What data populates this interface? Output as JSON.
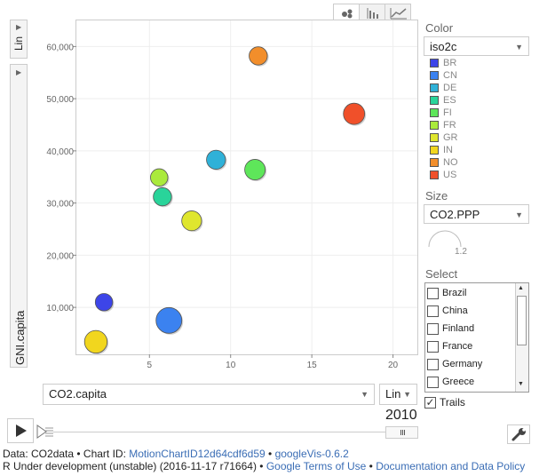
{
  "y_axis": {
    "scale": "Lin",
    "variable": "GNI.capita",
    "ticks": [
      "10,000",
      "20,000",
      "30,000",
      "40,000",
      "50,000",
      "60,000"
    ]
  },
  "x_axis": {
    "scale": "Lin",
    "variable": "CO2.capita",
    "ticks": [
      "5",
      "10",
      "15",
      "20"
    ]
  },
  "chart_tabs": [
    {
      "name": "bubble-chart",
      "active": true
    },
    {
      "name": "bar-chart",
      "active": false
    },
    {
      "name": "line-chart",
      "active": false
    }
  ],
  "color_panel": {
    "title": "Color",
    "selected": "iso2c",
    "legend": [
      {
        "code": "BR",
        "color": "#3d45e8"
      },
      {
        "code": "CN",
        "color": "#3b82f0"
      },
      {
        "code": "DE",
        "color": "#2fb1d8"
      },
      {
        "code": "ES",
        "color": "#29d49a"
      },
      {
        "code": "FI",
        "color": "#5ee65a"
      },
      {
        "code": "FR",
        "color": "#aaea3c"
      },
      {
        "code": "GR",
        "color": "#dfe62e"
      },
      {
        "code": "IN",
        "color": "#f1d61e"
      },
      {
        "code": "NO",
        "color": "#f28e2b"
      },
      {
        "code": "US",
        "color": "#f0502a"
      }
    ]
  },
  "size_panel": {
    "title": "Size",
    "selected": "CO2.PPP",
    "value": "1.2"
  },
  "select_panel": {
    "title": "Select",
    "items": [
      "Brazil",
      "China",
      "Finland",
      "France",
      "Germany",
      "Greece"
    ]
  },
  "trails": {
    "label": "Trails",
    "checked": true
  },
  "time": {
    "year": "2010"
  },
  "chart_data": {
    "type": "scatter",
    "xlabel": "CO2.capita",
    "ylabel": "GNI.capita",
    "xlim": [
      0.5,
      21.5
    ],
    "ylim": [
      1000,
      65000
    ],
    "points": [
      {
        "code": "BR",
        "x": 2.2,
        "y": 11000,
        "size": 1.0,
        "color": "#3d45e8"
      },
      {
        "code": "CN",
        "x": 6.2,
        "y": 7500,
        "size": 2.2,
        "color": "#3b82f0"
      },
      {
        "code": "DE",
        "x": 9.1,
        "y": 38300,
        "size": 1.2,
        "color": "#2fb1d8"
      },
      {
        "code": "ES",
        "x": 5.8,
        "y": 31200,
        "size": 1.1,
        "color": "#29d49a"
      },
      {
        "code": "FI",
        "x": 11.5,
        "y": 36400,
        "size": 1.4,
        "color": "#5ee65a"
      },
      {
        "code": "FR",
        "x": 5.6,
        "y": 34900,
        "size": 1.0,
        "color": "#aaea3c"
      },
      {
        "code": "GR",
        "x": 7.6,
        "y": 26600,
        "size": 1.3,
        "color": "#dfe62e"
      },
      {
        "code": "IN",
        "x": 1.7,
        "y": 3400,
        "size": 1.7,
        "color": "#f1d61e"
      },
      {
        "code": "NO",
        "x": 11.7,
        "y": 58200,
        "size": 1.1,
        "color": "#f28e2b"
      },
      {
        "code": "US",
        "x": 17.6,
        "y": 47100,
        "size": 1.5,
        "color": "#f0502a"
      }
    ]
  },
  "footer": {
    "line1_prefix": "Data: CO2data • Chart ID: ",
    "chart_id": "MotionChartID12d64cdf6d59",
    "sep1": " • ",
    "googlevis": "googleVis-0.6.2",
    "line2_prefix": "R Under development (unstable) (2016-11-17 r71664) • ",
    "terms": "Google Terms of Use",
    "sep2": " • ",
    "docs": "Documentation and Data Policy"
  }
}
